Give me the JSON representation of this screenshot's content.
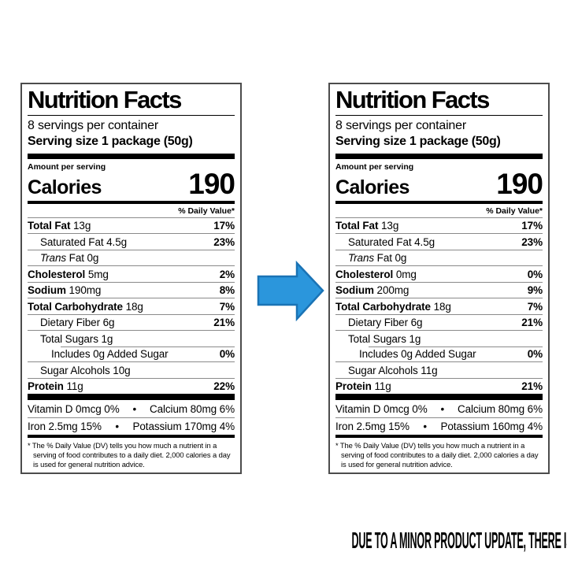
{
  "bullet": "•",
  "caption": "DUE TO A MINOR PRODUCT UPDATE, THERE IS A CHANCE YOU WILL RECEIVE EITHER OF THESE TWO PRODUCTS",
  "arrow": {
    "fill": "#2B96DC",
    "stroke": "#1A73B5"
  },
  "labels": [
    {
      "title": "Nutrition Facts",
      "servings_per_container": "8 servings per container",
      "serving_size": "Serving size 1 package (50g)",
      "amount_per_serving": "Amount per serving",
      "calories_label": "Calories",
      "calories_value": "190",
      "daily_value_header": "% Daily Value*",
      "rows": [
        {
          "cls": "main",
          "n": "Total Fat",
          "a": "13g",
          "dv": "17%"
        },
        {
          "cls": "sub",
          "n": "Saturated Fat",
          "a": "4.5g",
          "dv": "23%"
        },
        {
          "cls": "sub",
          "ni": "Trans",
          "n": " Fat",
          "a": "0g",
          "dv": ""
        },
        {
          "cls": "main",
          "n": "Cholesterol",
          "a": "5mg",
          "dv": "2%"
        },
        {
          "cls": "main",
          "n": "Sodium",
          "a": "190mg",
          "dv": "8%"
        },
        {
          "cls": "main",
          "n": "Total Carbohydrate",
          "a": "18g",
          "dv": "7%"
        },
        {
          "cls": "sub",
          "n": "Dietary Fiber",
          "a": "6g",
          "dv": "21%"
        },
        {
          "cls": "sub",
          "n": "Total Sugars",
          "a": "1g",
          "dv": ""
        },
        {
          "cls": "sub2",
          "sep": "inset",
          "n": "Includes 0g Added Sugar",
          "a": "",
          "dv": "0%"
        },
        {
          "cls": "sub",
          "n": "Sugar Alcohols",
          "a": "10g",
          "dv": ""
        },
        {
          "cls": "main",
          "n": "Protein",
          "a": "11g",
          "dv": "22%"
        }
      ],
      "micros": [
        {
          "left": "Vitamin D 0mcg 0%",
          "right": "Calcium 80mg 6%"
        },
        {
          "left": "Iron 2.5mg 15%",
          "right": "Potassium 170mg 4%"
        }
      ],
      "footnote": "* The % Daily Value (DV) tells you how much a nutrient in a serving of food contributes to a daily diet. 2,000 calories a day is used for general nutrition advice."
    },
    {
      "title": "Nutrition Facts",
      "servings_per_container": "8 servings per container",
      "serving_size": "Serving size 1 package (50g)",
      "amount_per_serving": "Amount per serving",
      "calories_label": "Calories",
      "calories_value": "190",
      "daily_value_header": "% Daily Value*",
      "rows": [
        {
          "cls": "main",
          "n": "Total Fat",
          "a": "13g",
          "dv": "17%"
        },
        {
          "cls": "sub",
          "n": "Saturated Fat",
          "a": "4.5g",
          "dv": "23%"
        },
        {
          "cls": "sub",
          "ni": "Trans",
          "n": " Fat",
          "a": "0g",
          "dv": ""
        },
        {
          "cls": "main",
          "n": "Cholesterol",
          "a": "0mg",
          "dv": "0%"
        },
        {
          "cls": "main",
          "n": "Sodium",
          "a": "200mg",
          "dv": "9%"
        },
        {
          "cls": "main",
          "n": "Total Carbohydrate",
          "a": "18g",
          "dv": "7%"
        },
        {
          "cls": "sub",
          "n": "Dietary Fiber",
          "a": "6g",
          "dv": "21%"
        },
        {
          "cls": "sub",
          "n": "Total Sugars",
          "a": "1g",
          "dv": ""
        },
        {
          "cls": "sub2",
          "sep": "inset",
          "n": "Includes 0g Added Sugar",
          "a": "",
          "dv": "0%"
        },
        {
          "cls": "sub",
          "n": "Sugar Alcohols",
          "a": "11g",
          "dv": ""
        },
        {
          "cls": "main",
          "n": "Protein",
          "a": "11g",
          "dv": "21%"
        }
      ],
      "micros": [
        {
          "left": "Vitamin D 0mcg 0%",
          "right": "Calcium 80mg 6%"
        },
        {
          "left": "Iron 2.5mg 15%",
          "right": "Potassium 160mg 4%"
        }
      ],
      "footnote": "* The % Daily Value (DV) tells you how much a nutrient in a serving of food contributes to a daily diet. 2,000 calories a day is used for general nutrition advice."
    }
  ]
}
